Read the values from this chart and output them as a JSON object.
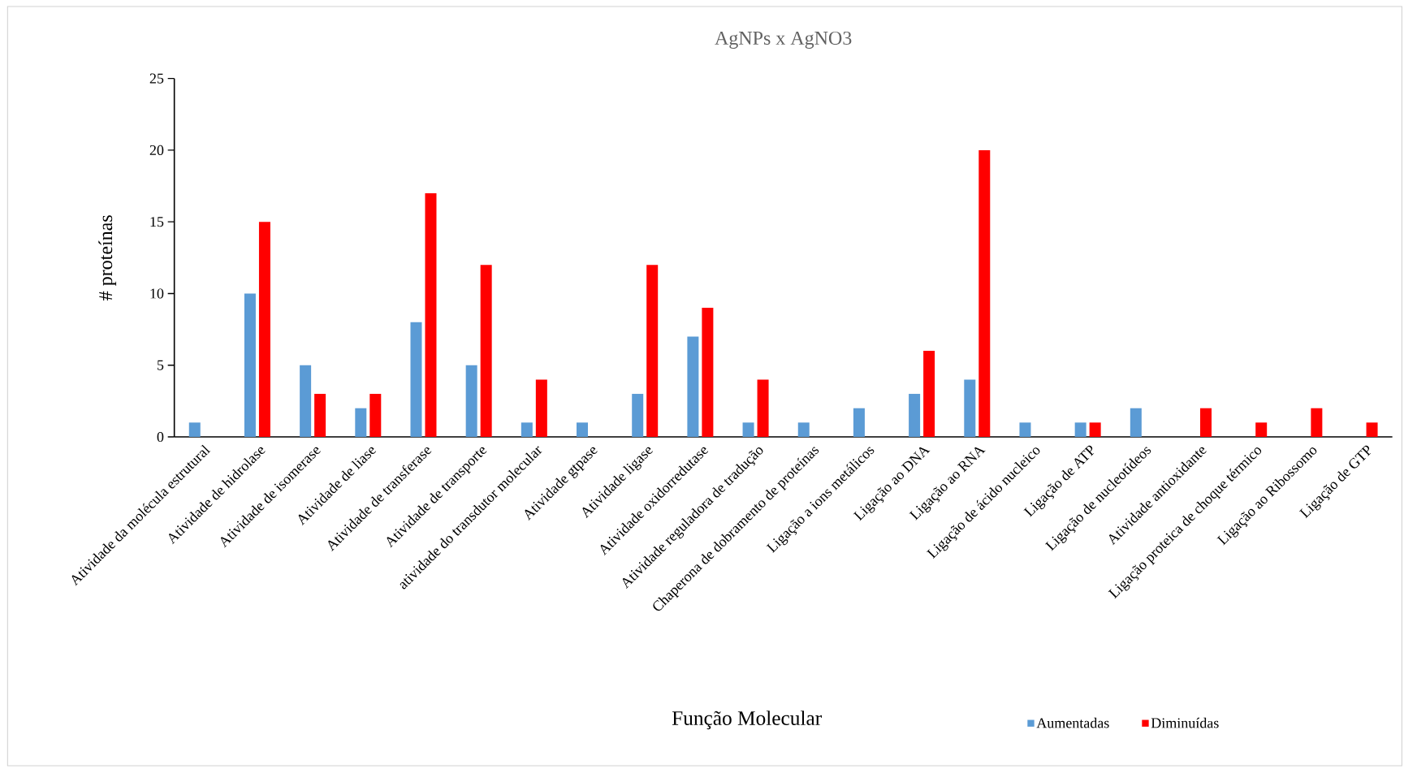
{
  "chart_data": {
    "type": "bar",
    "title": "AgNPs x AgNO3",
    "xlabel": "Função Molecular",
    "ylabel": "# proteínas",
    "categories": [
      "Atividade da molécula estrutural",
      "Atividade de hidrolase",
      "Atividade de isomerase",
      "Atividade de liase",
      "Atividade de transferase",
      "Atividade de transporte",
      "atividade do transdutor molecular",
      "Atividade gtpase",
      "Atividade ligase",
      "Atividade oxidorredutase",
      "Atividade reguladora de tradução",
      "Chaperona de dobramento de proteínas",
      "Ligação a ions metálicos",
      "Ligação ao DNA",
      "Ligação ao RNA",
      "Ligação de ácido nucleico",
      "Ligação de ATP",
      "Ligação de nucleotídeos",
      "Atividade antioxidante",
      "Ligação proteica de choque térmico",
      "Ligação ao Ribossomo",
      "Ligação de GTP"
    ],
    "series": [
      {
        "name": "Aumentadas",
        "color": "#5b9bd5",
        "values": [
          1,
          10,
          5,
          2,
          8,
          5,
          1,
          1,
          3,
          7,
          1,
          1,
          2,
          3,
          4,
          1,
          1,
          2,
          0,
          0,
          0,
          0
        ]
      },
      {
        "name": "Diminuídas",
        "color": "#ff0000",
        "values": [
          0,
          15,
          3,
          3,
          17,
          12,
          4,
          0,
          12,
          9,
          4,
          0,
          0,
          6,
          20,
          0,
          1,
          0,
          2,
          1,
          2,
          1
        ]
      }
    ],
    "ylim": [
      0,
      25
    ],
    "yticks": [
      0,
      5,
      10,
      15,
      20,
      25
    ],
    "grid": false,
    "legend": "bottom right"
  }
}
